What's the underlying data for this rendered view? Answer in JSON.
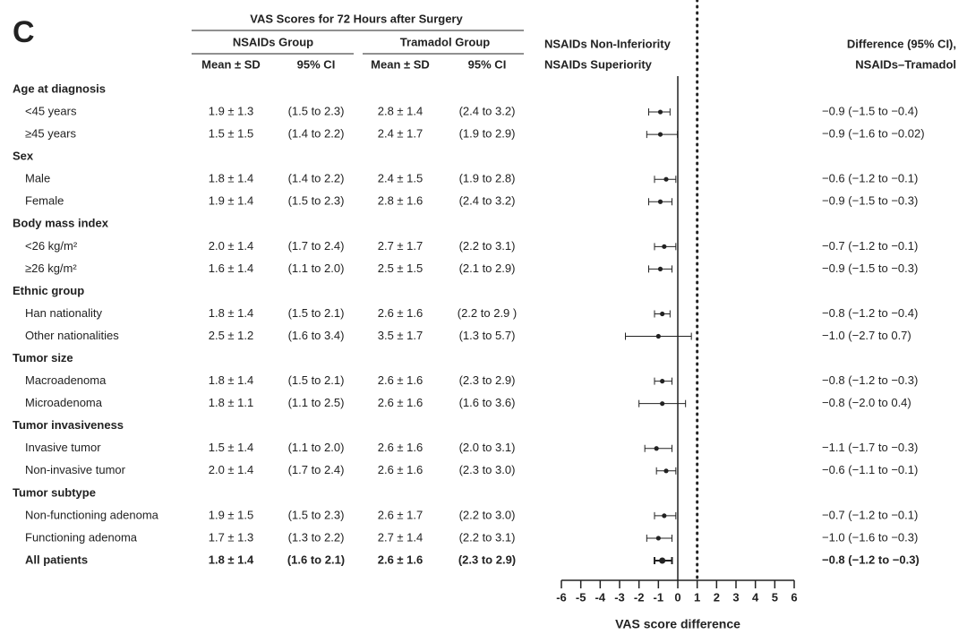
{
  "chart_data": {
    "type": "forest",
    "panel": "C",
    "title": "VAS Scores for 72 Hours after Surgery",
    "groups": [
      "NSAIDs Group",
      "Tramadol Group"
    ],
    "column_headers": [
      "Mean ± SD",
      "95% CI",
      "Mean ± SD",
      "95% CI"
    ],
    "zone_labels": [
      "NSAIDs Non-Inferiority",
      "NSAIDs Superiority"
    ],
    "difference_header": [
      "Difference (95% CI),",
      "NSAIDs–Tramadol"
    ],
    "xlabel": "VAS score difference",
    "xlim": [
      -6,
      6
    ],
    "xticks": [
      -6,
      -5,
      -4,
      -3,
      -2,
      -1,
      0,
      1,
      2,
      3,
      4,
      5,
      6
    ],
    "margin": 1,
    "color": "#222222",
    "rows": [
      {
        "label": "Age at diagnosis"
      },
      {
        "label": "<45 years",
        "stats": [
          "1.9 ± 1.3",
          "(1.5 to 2.3)",
          "2.8 ± 1.4",
          "(2.4 to 3.2)"
        ],
        "difference": -0.9,
        "ci": [
          -1.5,
          -0.4
        ],
        "difference_label": "−0.9 (−1.5 to −0.4)"
      },
      {
        "label": "≥45 years",
        "stats": [
          "1.5 ± 1.5",
          "(1.4 to 2.2)",
          "2.4 ± 1.7",
          "(1.9 to 2.9)"
        ],
        "difference": -0.9,
        "ci": [
          -1.6,
          -0.02
        ],
        "difference_label": "−0.9 (−1.6 to −0.02)"
      },
      {
        "label": "Sex"
      },
      {
        "label": "Male",
        "stats": [
          "1.8 ± 1.4",
          "(1.4 to 2.2)",
          "2.4 ± 1.5",
          "(1.9 to 2.8)"
        ],
        "difference": -0.6,
        "ci": [
          -1.2,
          -0.1
        ],
        "difference_label": "−0.6 (−1.2 to −0.1)"
      },
      {
        "label": "Female",
        "stats": [
          "1.9 ± 1.4",
          "(1.5 to 2.3)",
          "2.8 ± 1.6",
          "(2.4 to 3.2)"
        ],
        "difference": -0.9,
        "ci": [
          -1.5,
          -0.3
        ],
        "difference_label": "−0.9 (−1.5 to −0.3)"
      },
      {
        "label": "Body mass index"
      },
      {
        "label": "<26 kg/m²",
        "stats": [
          "2.0 ± 1.4",
          "(1.7 to 2.4)",
          "2.7 ± 1.7",
          "(2.2 to 3.1)"
        ],
        "difference": -0.7,
        "ci": [
          -1.2,
          -0.1
        ],
        "difference_label": "−0.7 (−1.2 to −0.1)"
      },
      {
        "label": "≥26 kg/m²",
        "stats": [
          "1.6 ± 1.4",
          "(1.1 to 2.0)",
          "2.5 ± 1.5",
          "(2.1 to 2.9)"
        ],
        "difference": -0.9,
        "ci": [
          -1.5,
          -0.3
        ],
        "difference_label": "−0.9 (−1.5 to −0.3)"
      },
      {
        "label": "Ethnic group"
      },
      {
        "label": "Han nationality",
        "stats": [
          "1.8 ± 1.4",
          "(1.5 to 2.1)",
          "2.6 ± 1.6",
          "(2.2 to 2.9 )"
        ],
        "difference": -0.8,
        "ci": [
          -1.2,
          -0.4
        ],
        "difference_label": "−0.8 (−1.2 to −0.4)"
      },
      {
        "label": "Other nationalities",
        "stats": [
          "2.5 ± 1.2",
          "(1.6 to 3.4)",
          "3.5 ± 1.7",
          "(1.3 to 5.7)"
        ],
        "difference": -1.0,
        "ci": [
          -2.7,
          0.7
        ],
        "difference_label": "−1.0 (−2.7 to 0.7)"
      },
      {
        "label": "Tumor size"
      },
      {
        "label": "Macroadenoma",
        "stats": [
          "1.8 ± 1.4",
          "(1.5 to 2.1)",
          "2.6 ± 1.6",
          "(2.3 to 2.9)"
        ],
        "difference": -0.8,
        "ci": [
          -1.2,
          -0.3
        ],
        "difference_label": "−0.8 (−1.2 to −0.3)"
      },
      {
        "label": "Microadenoma",
        "stats": [
          "1.8 ± 1.1",
          "(1.1 to 2.5)",
          "2.6 ± 1.6",
          "(1.6 to 3.6)"
        ],
        "difference": -0.8,
        "ci": [
          -2.0,
          0.4
        ],
        "difference_label": "−0.8 (−2.0 to 0.4)"
      },
      {
        "label": "Tumor invasiveness"
      },
      {
        "label": "Invasive tumor",
        "stats": [
          "1.5 ± 1.4",
          "(1.1 to 2.0)",
          "2.6 ± 1.6",
          "(2.0 to 3.1)"
        ],
        "difference": -1.1,
        "ci": [
          -1.7,
          -0.3
        ],
        "difference_label": "−1.1 (−1.7 to −0.3)"
      },
      {
        "label": "Non-invasive tumor",
        "stats": [
          "2.0 ± 1.4",
          "(1.7 to 2.4)",
          "2.6 ± 1.6",
          "(2.3 to 3.0)"
        ],
        "difference": -0.6,
        "ci": [
          -1.1,
          -0.1
        ],
        "difference_label": "−0.6 (−1.1 to −0.1)"
      },
      {
        "label": "Tumor subtype"
      },
      {
        "label": "Non-functioning adenoma",
        "stats": [
          "1.9 ± 1.5",
          "(1.5 to 2.3)",
          "2.6 ± 1.7",
          "(2.2 to 3.0)"
        ],
        "difference": -0.7,
        "ci": [
          -1.2,
          -0.1
        ],
        "difference_label": "−0.7 (−1.2 to −0.1)"
      },
      {
        "label": "Functioning adenoma",
        "stats": [
          "1.7 ± 1.3",
          "(1.3 to 2.2)",
          "2.7 ± 1.4",
          "(2.2 to 3.1)"
        ],
        "difference": -1.0,
        "ci": [
          -1.6,
          -0.3
        ],
        "difference_label": "−1.0 (−1.6 to −0.3)"
      },
      {
        "label": "All patients",
        "bold": true,
        "stats": [
          "1.8 ± 1.4",
          "(1.6 to 2.1)",
          "2.6 ± 1.6",
          "(2.3 to 2.9)"
        ],
        "difference": -0.8,
        "ci": [
          -1.2,
          -0.3
        ],
        "difference_label": "−0.8 (−1.2 to −0.3)"
      }
    ]
  }
}
